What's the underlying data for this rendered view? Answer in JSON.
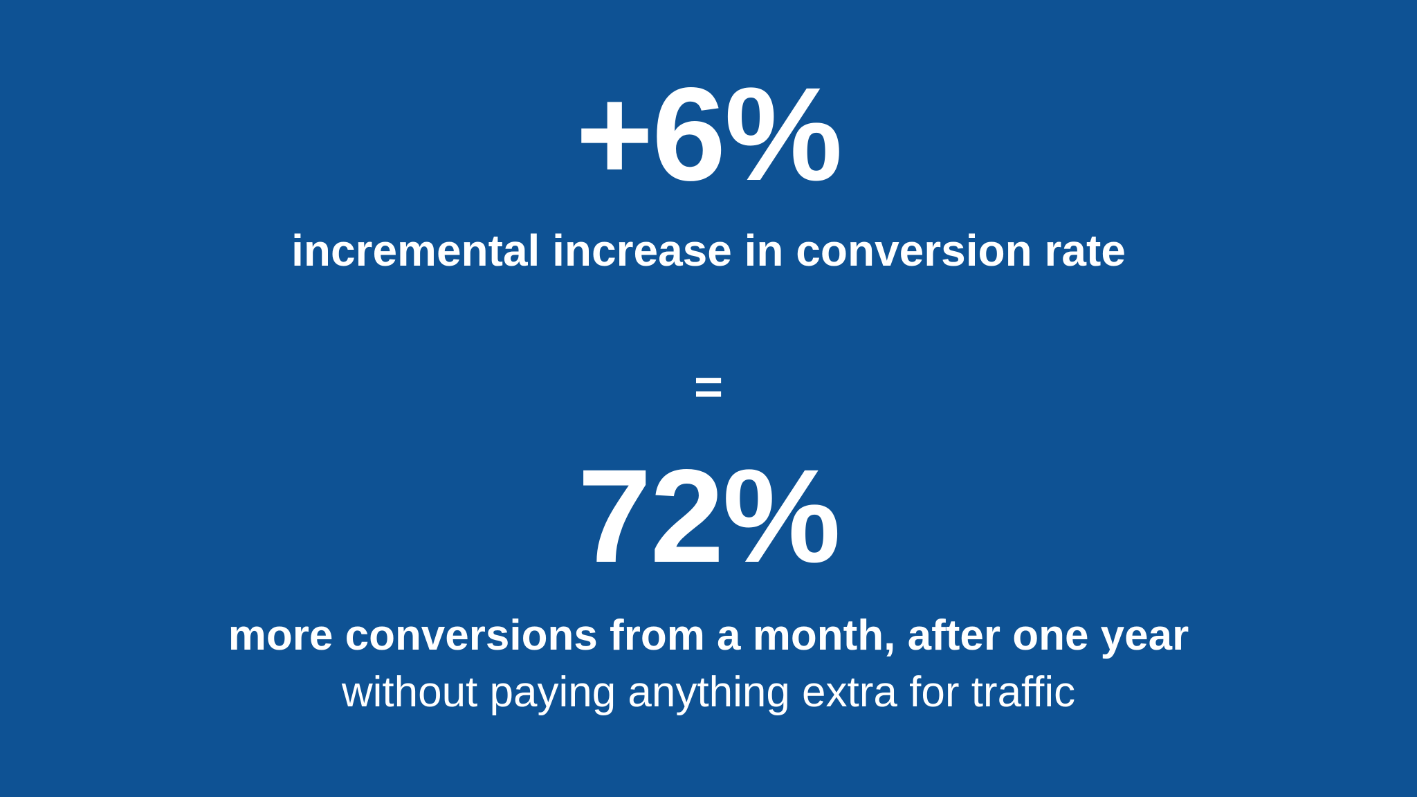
{
  "slide": {
    "background_color": "#0e5294",
    "text_color": "#ffffff",
    "stat_1": "+6%",
    "caption_1": "incremental increase in conversion rate",
    "equals": "=",
    "stat_2": "72%",
    "caption_2": "more conversions from a month, after one year",
    "caption_3": "without paying anything extra for traffic"
  }
}
